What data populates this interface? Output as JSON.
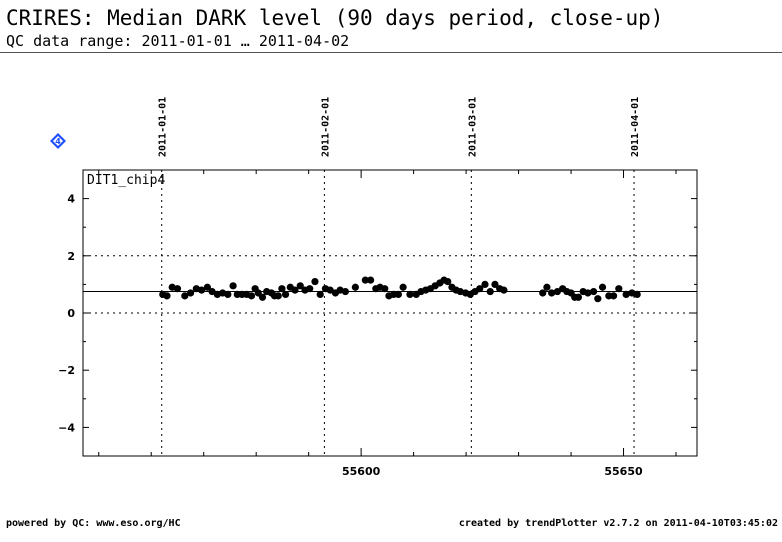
{
  "header": {
    "title": "CRIRES: Median DARK level (90 days period, close-up)",
    "subtitle": "QC data range: 2011-01-01 … 2011-04-02"
  },
  "footer": {
    "left": "powered by QC: www.eso.org/HC",
    "right": "created by trendPlotter v2.7.2 on 2011-04-10T03:45:02"
  },
  "marker": {
    "label": "4",
    "color": "#1f4fff"
  },
  "chart_data": {
    "type": "scatter",
    "panel_label": "DIT1_chip4",
    "xlim": [
      55547,
      55664
    ],
    "ylim": [
      -5,
      5
    ],
    "x_ticks": [
      55600,
      55650
    ],
    "y_ticks": [
      -4,
      -2,
      0,
      2,
      4
    ],
    "date_markers": [
      {
        "label": "2011-01-01",
        "x": 55562
      },
      {
        "label": "2011-02-01",
        "x": 55593
      },
      {
        "label": "2011-03-01",
        "x": 55621
      },
      {
        "label": "2011-04-01",
        "x": 55652
      }
    ],
    "y_reference_lines": [
      2,
      0
    ],
    "median_line": 0.75,
    "x": [
      55562.2,
      55563.0,
      55564.0,
      55565.0,
      55566.4,
      55567.5,
      55568.6,
      55569.6,
      55570.7,
      55571.6,
      55572.6,
      55573.6,
      55574.6,
      55575.6,
      55576.4,
      55577.3,
      55578.2,
      55579.1,
      55579.8,
      55580.4,
      55581.2,
      55582.0,
      55582.9,
      55583.5,
      55584.2,
      55584.9,
      55585.6,
      55586.5,
      55587.4,
      55588.4,
      55589.3,
      55590.2,
      55591.2,
      55592.2,
      55593.2,
      55594.1,
      55595.1,
      55596.0,
      55597.0,
      55598.9,
      55600.8,
      55601.8,
      55602.8,
      55603.6,
      55604.5,
      55605.3,
      55606.2,
      55607.1,
      55608.0,
      55609.3,
      55610.5,
      55611.4,
      55612.3,
      55613.2,
      55614.1,
      55615.0,
      55615.8,
      55616.5,
      55617.3,
      55618.1,
      55618.9,
      55619.9,
      55620.8,
      55621.7,
      55622.6,
      55623.6,
      55624.6,
      55625.5,
      55626.4,
      55627.2,
      55634.6,
      55635.4,
      55636.3,
      55637.4,
      55638.4,
      55639.2,
      55640.0,
      55640.7,
      55641.4,
      55642.3,
      55643.2,
      55644.3,
      55645.1,
      55646.0,
      55647.2,
      55648.1,
      55649.1,
      55650.5,
      55651.6,
      55652.6
    ],
    "y": [
      0.65,
      0.6,
      0.9,
      0.85,
      0.6,
      0.7,
      0.85,
      0.8,
      0.9,
      0.75,
      0.65,
      0.7,
      0.65,
      0.95,
      0.65,
      0.65,
      0.65,
      0.6,
      0.85,
      0.7,
      0.55,
      0.75,
      0.7,
      0.6,
      0.6,
      0.85,
      0.65,
      0.9,
      0.8,
      0.95,
      0.8,
      0.85,
      1.1,
      0.65,
      0.85,
      0.8,
      0.7,
      0.8,
      0.75,
      0.9,
      1.15,
      1.15,
      0.85,
      0.9,
      0.85,
      0.6,
      0.65,
      0.65,
      0.9,
      0.65,
      0.65,
      0.75,
      0.8,
      0.85,
      0.95,
      1.05,
      1.15,
      1.1,
      0.9,
      0.8,
      0.75,
      0.7,
      0.65,
      0.75,
      0.85,
      1.0,
      0.75,
      1.0,
      0.85,
      0.8,
      0.7,
      0.9,
      0.7,
      0.75,
      0.85,
      0.75,
      0.7,
      0.55,
      0.55,
      0.75,
      0.7,
      0.75,
      0.5,
      0.9,
      0.6,
      0.6,
      0.85,
      0.65,
      0.7,
      0.65
    ]
  }
}
